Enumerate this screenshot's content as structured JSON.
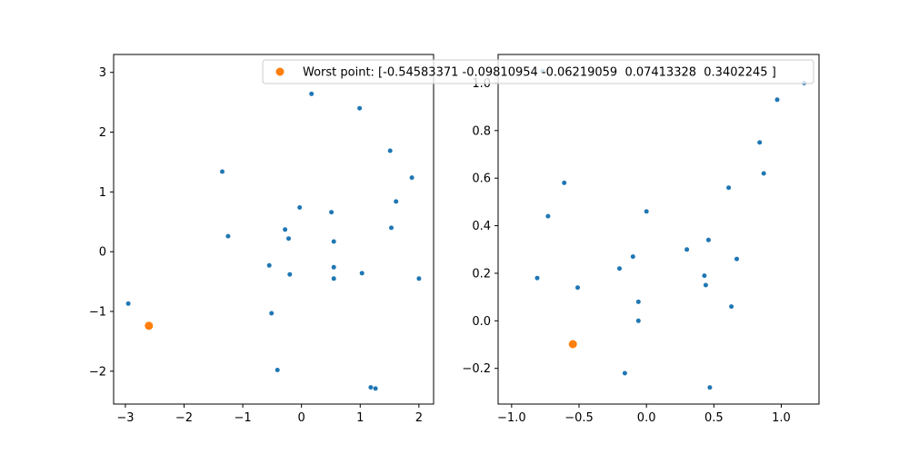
{
  "colors": {
    "points": "#1f77b4",
    "worst": "#ff7f0e",
    "axis": "#000000",
    "legend_border": "#cccccc"
  },
  "legend": {
    "label": "Worst point: [-0.54583371 -0.09810954 -0.06219059  0.07413328  0.3402245 ]",
    "placement": "upper right"
  },
  "chart_data": [
    {
      "type": "scatter",
      "title": "",
      "xlabel": "",
      "ylabel": "",
      "xlim": [
        -3.2,
        2.25
      ],
      "ylim": [
        -2.55,
        3.3
      ],
      "xticks": [
        -3,
        -2,
        -1,
        0,
        1,
        2
      ],
      "xtick_labels": [
        "−3",
        "−2",
        "−1",
        "0",
        "1",
        "2"
      ],
      "yticks": [
        -2,
        -1,
        0,
        1,
        2,
        3
      ],
      "ytick_labels": [
        "−2",
        "−1",
        "0",
        "1",
        "2",
        "3"
      ],
      "grid": false,
      "series": [
        {
          "role": "points",
          "x": [
            -2.95,
            -1.35,
            -1.25,
            0.17,
            0.99,
            1.51,
            1.88,
            1.61,
            -0.03,
            0.51,
            -0.28,
            -0.22,
            0.55,
            1.53,
            -0.55,
            -0.2,
            0.55,
            1.03,
            0.55,
            2.0,
            -0.51,
            -0.41,
            1.18,
            1.26
          ],
          "y": [
            -0.87,
            1.34,
            0.26,
            2.64,
            2.4,
            1.69,
            1.24,
            0.84,
            0.74,
            0.66,
            0.37,
            0.22,
            0.17,
            0.4,
            -0.23,
            -0.38,
            -0.26,
            -0.36,
            -0.45,
            -0.45,
            -1.03,
            -1.98,
            -2.27,
            -2.29
          ]
        },
        {
          "role": "worst",
          "x": [
            -2.6
          ],
          "y": [
            -1.24
          ]
        }
      ]
    },
    {
      "type": "scatter",
      "title": "",
      "xlabel": "",
      "ylabel": "",
      "xlim": [
        -1.1,
        1.28
      ],
      "ylim": [
        -0.35,
        1.12
      ],
      "xticks": [
        -1.0,
        -0.5,
        0.0,
        0.5,
        1.0
      ],
      "xtick_labels": [
        "−1.0",
        "−0.5",
        "0.0",
        "0.5",
        "1.0"
      ],
      "yticks": [
        -0.2,
        0.0,
        0.2,
        0.4,
        0.6,
        0.8,
        1.0
      ],
      "ytick_labels": [
        "−0.2",
        "0.0",
        "0.2",
        "0.4",
        "0.6",
        "0.8",
        "1.0"
      ],
      "grid": false,
      "series": [
        {
          "role": "points",
          "x": [
            -0.77,
            -0.61,
            -0.73,
            -0.81,
            0.0,
            -0.1,
            -0.2,
            -0.51,
            0.3,
            0.46,
            0.67,
            0.43,
            0.44,
            -0.06,
            -0.06,
            0.63,
            -0.16,
            0.47,
            0.61,
            0.87,
            0.84,
            0.97,
            1.17
          ],
          "y": [
            1.05,
            0.58,
            0.44,
            0.18,
            0.46,
            0.27,
            0.22,
            0.14,
            0.3,
            0.34,
            0.26,
            0.19,
            0.15,
            0.08,
            0.0,
            0.06,
            -0.22,
            -0.28,
            0.56,
            0.62,
            0.75,
            0.93,
            1.0
          ]
        },
        {
          "role": "worst",
          "x": [
            -0.546
          ],
          "y": [
            -0.098
          ]
        }
      ]
    }
  ]
}
